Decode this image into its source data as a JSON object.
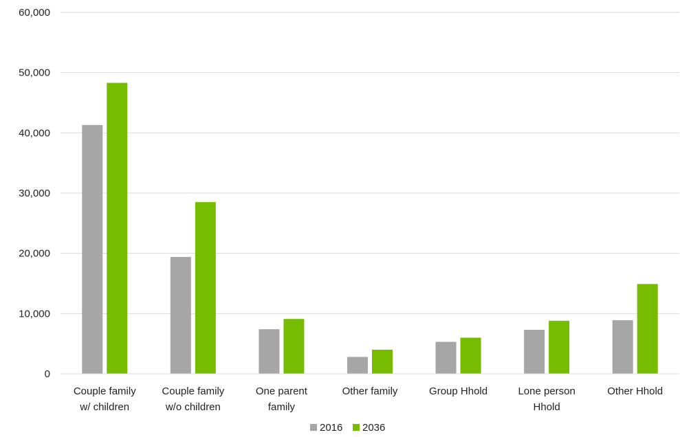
{
  "chart_data": {
    "type": "bar",
    "title": "",
    "xlabel": "",
    "ylabel": "",
    "categories": [
      [
        "Couple family",
        "w/ children"
      ],
      [
        "Couple family",
        "w/o children"
      ],
      [
        "One parent",
        "family"
      ],
      [
        "Other family"
      ],
      [
        "Group Hhold"
      ],
      [
        "Lone person",
        "Hhold"
      ],
      [
        "Other Hhold"
      ]
    ],
    "series": [
      {
        "name": "2016",
        "color": "#a6a6a6",
        "values": [
          41300,
          19400,
          7400,
          2800,
          5300,
          7300,
          8900
        ]
      },
      {
        "name": "2036",
        "color": "#76bc00",
        "values": [
          48300,
          28500,
          9100,
          4000,
          6000,
          8800,
          14900
        ]
      }
    ],
    "ylim": [
      0,
      60000
    ],
    "yticks": [
      0,
      10000,
      20000,
      30000,
      40000,
      50000,
      60000
    ],
    "ytick_labels": [
      "0",
      "10,000",
      "20,000",
      "30,000",
      "40,000",
      "50,000",
      "60,000"
    ],
    "grid": true,
    "grid_color": "#d9d9d9",
    "legend_position": "bottom"
  }
}
